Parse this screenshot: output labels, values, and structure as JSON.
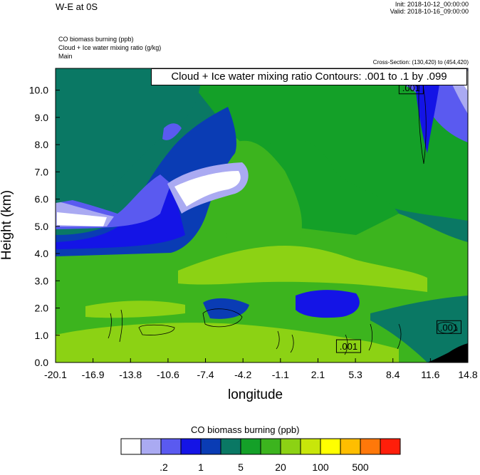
{
  "header": {
    "title": "W-E at 0S",
    "init": "Init: 2018-10-12_00:00:00",
    "valid": "Valid: 2018-10-16_09:00:00",
    "field1": "CO biomass burning   (ppb)",
    "field2": "Cloud + Ice water mixing ratio   (g/kg)",
    "field3": "Main",
    "cross_section": "Cross-Section: (130,420) to (454,420)",
    "contour_info": "Cloud + Ice water mixing ratio Contours: .001 to .1 by .099"
  },
  "colors": {
    "levels": [
      "#ffffff",
      "#aaaaf2",
      "#5a5af0",
      "#1414e6",
      "#0a3cb4",
      "#0a7864",
      "#14a028",
      "#3cb41e",
      "#8cd214",
      "#c8e60a",
      "#ffff00",
      "#ffbe00",
      "#ff780a",
      "#ff1e0a"
    ],
    "ground": "#000000"
  },
  "chart_data": {
    "type": "heatmap",
    "xlabel": "longitude",
    "ylabel": "Height (km)",
    "x_ticks": [
      "-20.1",
      "-16.9",
      "-13.8",
      "-10.6",
      "-7.4",
      "-4.2",
      "-1.1",
      "2.1",
      "5.3",
      "8.4",
      "11.6",
      "14.8"
    ],
    "y_ticks": [
      "0.0",
      "1.0",
      "2.0",
      "3.0",
      "4.0",
      "5.0",
      "6.0",
      "7.0",
      "8.0",
      "9.0",
      "10.0"
    ],
    "xlim": [
      -20.1,
      14.8
    ],
    "ylim": [
      0,
      10.8
    ],
    "contour_labels": [
      {
        "text": ".001",
        "x": 10.0,
        "y": 10.1
      },
      {
        "text": ".001",
        "x": 4.7,
        "y": 0.6
      },
      {
        "text": ".001",
        "x": 13.2,
        "y": 1.3
      }
    ],
    "colorbar": {
      "title": "CO biomass burning  (ppb)",
      "tick_labels": [
        ".2",
        "1",
        "5",
        "20",
        "100",
        "500"
      ]
    }
  }
}
